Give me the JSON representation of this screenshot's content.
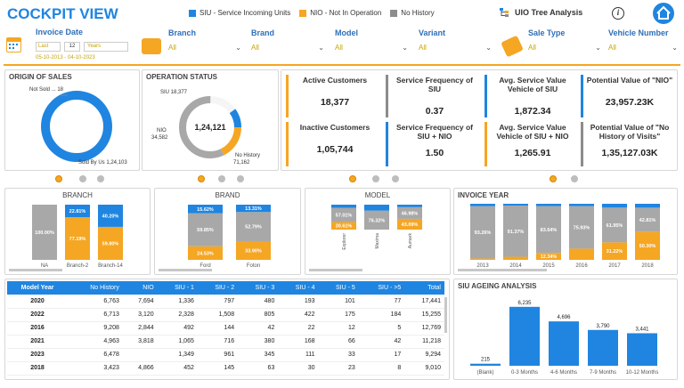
{
  "app_title": "COCKPIT VIEW",
  "legend": {
    "items": [
      {
        "label": "SIU - Service Incoming Units",
        "color": "#1f85e0"
      },
      {
        "label": "NIO - Not In Operation",
        "color": "#f5a623"
      },
      {
        "label": "No History",
        "color": "#8c8c8c"
      }
    ]
  },
  "uio_link": "UIO Tree Analysis",
  "invoice_filter": {
    "label": "Invoice Date",
    "mode": "Last",
    "number": "12",
    "unit": "Years",
    "range": "05-10-2013 - 04-10-2023"
  },
  "filters": [
    {
      "label": "Branch",
      "value": "All"
    },
    {
      "label": "Brand",
      "value": "All"
    },
    {
      "label": "Model",
      "value": "All"
    },
    {
      "label": "Variant",
      "value": "All"
    },
    {
      "label": "Sale Type",
      "value": "All"
    },
    {
      "label": "Vehicle Number",
      "value": "All"
    }
  ],
  "origin": {
    "title": "ORIGIN OF SALES",
    "label_top": "Not Sold ... 18",
    "label_bottom": "Sold By Us 1,24,103"
  },
  "operation": {
    "title": "OPERATION STATUS",
    "center": "1,24,121",
    "siu_label": "SIU 18,377",
    "nio_label": "NIO",
    "nio_value": "34,582",
    "nh_label": "No History",
    "nh_value": "71,162"
  },
  "kpis": [
    {
      "title": "Active Customers",
      "value": "18,377",
      "color": "#f5a623"
    },
    {
      "title": "Service Frequency of SIU",
      "value": "0.37",
      "color": "#8c8c8c"
    },
    {
      "title": "Avg. Service Value Vehicle of SIU",
      "value": "1,872.34",
      "color": "#1f85e0"
    },
    {
      "title": "Potential Value of \"NIO\"",
      "value": "23,957.23K",
      "color": "#1f85e0"
    },
    {
      "title": "Inactive Customers",
      "value": "1,05,744",
      "color": "#f5a623"
    },
    {
      "title": "Service Frequency of SIU + NIO",
      "value": "1.50",
      "color": "#1f85e0"
    },
    {
      "title": "Avg. Service Value Vehicle of SIU + NIO",
      "value": "1,265.91",
      "color": "#f5a623"
    },
    {
      "title": "Potential Value of \"No History of Visits\"",
      "value": "1,35,127.03K",
      "color": "#8c8c8c"
    }
  ],
  "branch_title": "BRANCH",
  "brand_title": "BRAND",
  "model_title": "MODEL",
  "invoice_year_title": "INVOICE YEAR",
  "ageing_title": "SIU AGEING ANALYSIS",
  "chart_data": [
    {
      "type": "bar",
      "title": "BRANCH",
      "stacked": "percent",
      "categories": [
        "NA",
        "Branch-2",
        "Branch-14"
      ],
      "series": [
        {
          "name": "No History",
          "values": [
            100.0,
            0,
            0
          ]
        },
        {
          "name": "NIO - Not In Operation",
          "values": [
            0,
            77.19,
            59.8
          ]
        },
        {
          "name": "SIU - Service Incoming Units",
          "values": [
            0,
            22.81,
            40.2
          ]
        }
      ],
      "labels": [
        [
          "100.00%"
        ],
        [
          "77.19%",
          "22.81%"
        ],
        [
          "59.80%",
          "40.20%"
        ]
      ]
    },
    {
      "type": "bar",
      "title": "BRAND",
      "stacked": "percent",
      "categories": [
        "Ford",
        "Foton"
      ],
      "series": [
        {
          "name": "NIO - Not In Operation",
          "values": [
            24.53,
            33.9
          ]
        },
        {
          "name": "No History",
          "values": [
            59.85,
            52.79
          ]
        },
        {
          "name": "SIU - Service Incoming Units",
          "values": [
            15.62,
            13.31
          ]
        }
      ],
      "labels": [
        [
          "24.53%",
          "59.85%",
          "15.62%"
        ],
        [
          "33.90%",
          "52.79%",
          "13.31%"
        ]
      ]
    },
    {
      "type": "bar",
      "title": "MODEL",
      "stacked": "percent",
      "categories": [
        "Explorer",
        "Maxima",
        "Aumark"
      ],
      "series": [
        {
          "name": "NIO - Not In Operation",
          "values": [
            30.61,
            0,
            43.09
          ]
        },
        {
          "name": "No History",
          "values": [
            57.01,
            76.32,
            46.98
          ]
        },
        {
          "name": "SIU - Service Incoming Units",
          "values": [
            12.38,
            23.68,
            9.93
          ]
        }
      ],
      "labels": [
        [
          "30.61%",
          "57.01%"
        ],
        [
          "76.32%"
        ],
        [
          "43.09%",
          "46.98%"
        ]
      ]
    },
    {
      "type": "bar",
      "title": "INVOICE YEAR",
      "stacked": "percent",
      "categories": [
        "2013",
        "2014",
        "2015",
        "2016",
        "2017",
        "2018"
      ],
      "series": [
        {
          "name": "NIO - Not In Operation",
          "values": [
            2.5,
            5.5,
            12.34,
            20.0,
            31.22,
            50.3
          ]
        },
        {
          "name": "No History",
          "values": [
            93.26,
            91.37,
            83.64,
            75.93,
            61.95,
            42.81
          ]
        },
        {
          "name": "SIU - Service Incoming Units",
          "values": [
            4.24,
            3.13,
            4.02,
            4.07,
            6.83,
            6.89
          ]
        }
      ],
      "labels": [
        [
          "93.26%"
        ],
        [
          "91.37%"
        ],
        [
          "12.34%",
          "83.64%"
        ],
        [
          "75.93%"
        ],
        [
          "31.22%",
          "61.95%"
        ],
        [
          "50.30%",
          "42.81%"
        ]
      ]
    },
    {
      "type": "bar",
      "title": "SIU AGEING ANALYSIS",
      "categories": [
        "(Blank)",
        "0-3 Months",
        "4-6 Months",
        "7-9 Months",
        "10-12 Months"
      ],
      "values": [
        215,
        6235,
        4696,
        3790,
        3441
      ],
      "value_labels": [
        "215",
        "6,235",
        "4,696",
        "3,790",
        "3,441"
      ],
      "ylim": [
        0,
        6500
      ]
    },
    {
      "type": "table",
      "columns": [
        "Model Year",
        "No History",
        "NIO",
        "SIU - 1",
        "SIU - 2",
        "SIU - 3",
        "SIU - 4",
        "SIU - 5",
        "SIU - >5",
        "Total"
      ],
      "rows": [
        [
          "2020",
          "6,763",
          "7,694",
          "1,336",
          "797",
          "480",
          "193",
          "101",
          "77",
          "17,441"
        ],
        [
          "2022",
          "6,713",
          "3,120",
          "2,328",
          "1,508",
          "805",
          "422",
          "175",
          "184",
          "15,255"
        ],
        [
          "2016",
          "9,208",
          "2,844",
          "492",
          "144",
          "42",
          "22",
          "12",
          "5",
          "12,769"
        ],
        [
          "2021",
          "4,963",
          "3,818",
          "1,065",
          "716",
          "380",
          "168",
          "66",
          "42",
          "11,218"
        ],
        [
          "2023",
          "6,478",
          "",
          "1,349",
          "961",
          "345",
          "111",
          "33",
          "17",
          "9,294"
        ],
        [
          "2018",
          "3,423",
          "4,866",
          "452",
          "145",
          "63",
          "30",
          "23",
          "8",
          "9,010"
        ]
      ]
    }
  ]
}
